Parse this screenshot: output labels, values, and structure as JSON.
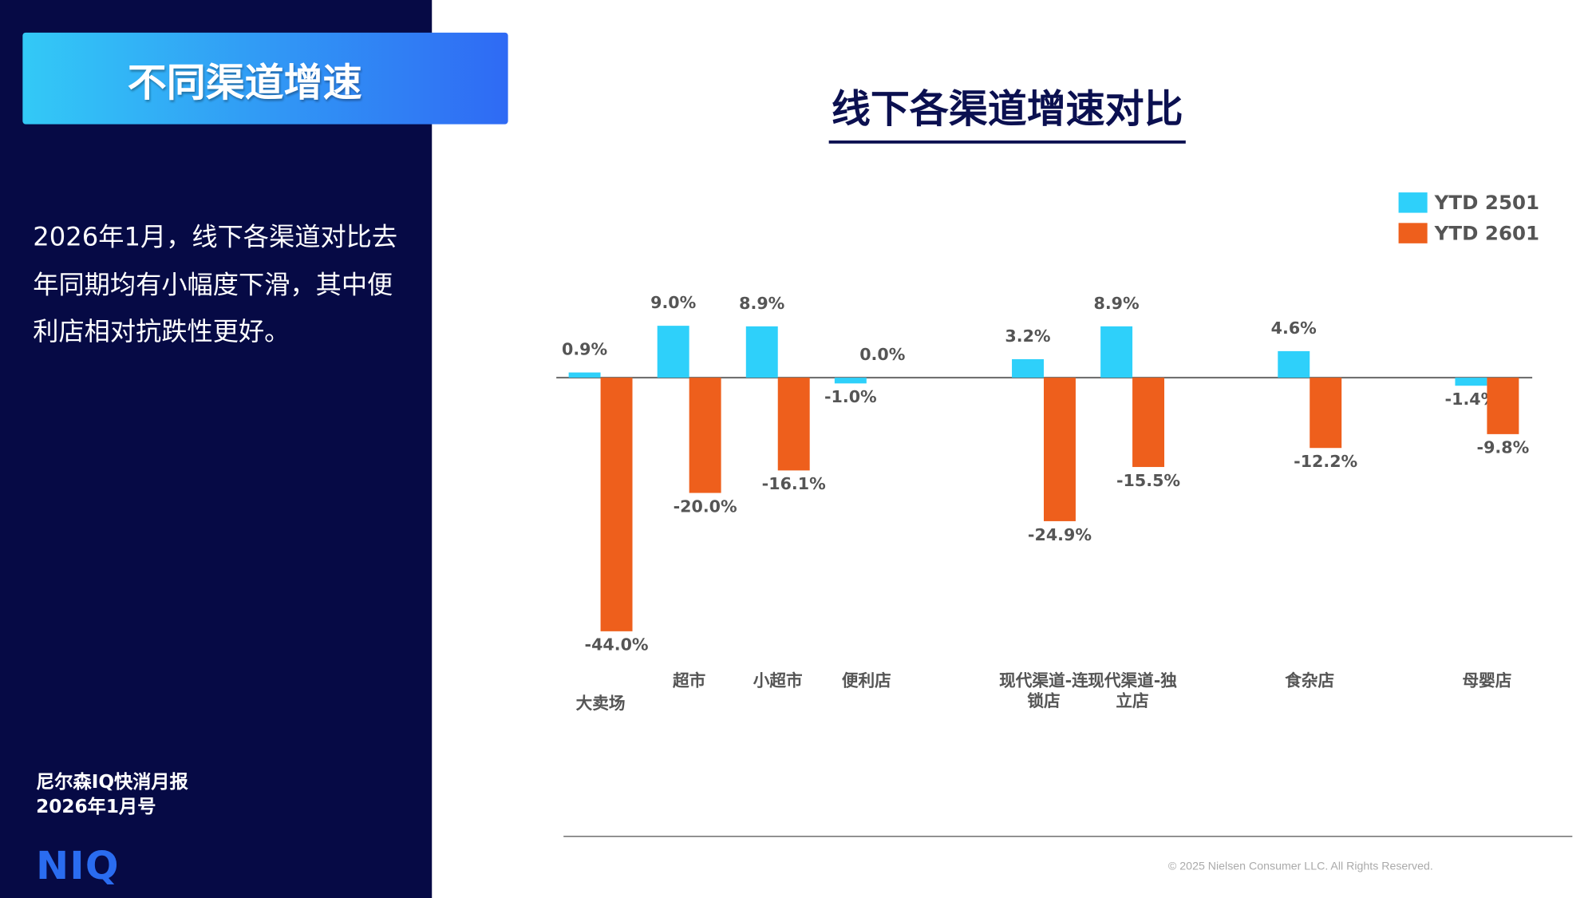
{
  "sidebar": {
    "header": "不同渠道增速",
    "body_lines": [
      "2026年1月，线下各渠道对比去",
      "年同期均有小幅度下滑，其中便",
      "利店相对抗跌性更好。"
    ],
    "report_name": "尼尔森IQ快消月报",
    "issue": "2026年1月号",
    "logo": "NIQ"
  },
  "copyright": "© 2025 Nielsen Consumer LLC. All Rights Reserved.",
  "chart_data": {
    "type": "bar",
    "title": "线下各渠道增速对比",
    "categories": [
      "大卖场",
      "超市",
      "小超市",
      "便利店",
      null,
      "现代渠道-连锁店",
      "现代渠道-独立店",
      null,
      "食杂店",
      null,
      "母婴店"
    ],
    "series": [
      {
        "name": "YTD 2501",
        "color": "#2ed0fa",
        "values": [
          0.9,
          9.0,
          8.9,
          -1.0,
          null,
          3.2,
          8.9,
          null,
          4.6,
          null,
          -1.4
        ],
        "value_labels": [
          "0.9%",
          "9.0%",
          "8.9%",
          "-1.0%",
          null,
          "3.2%",
          "8.9%",
          null,
          "4.6%",
          null,
          "-1.4%"
        ]
      },
      {
        "name": "YTD 2601",
        "color": "#ee5f1c",
        "values": [
          -44.0,
          -20.0,
          -16.1,
          0.0,
          null,
          -24.9,
          -15.5,
          null,
          -12.2,
          null,
          -9.8
        ],
        "value_labels": [
          "-44.0%",
          "-20.0%",
          "-16.1%",
          "0.0%",
          null,
          "-24.9%",
          "-15.5%",
          null,
          "-12.2%",
          null,
          "-9.8%"
        ]
      }
    ],
    "ylim": [
      -50,
      15
    ],
    "legend": "top-right"
  }
}
